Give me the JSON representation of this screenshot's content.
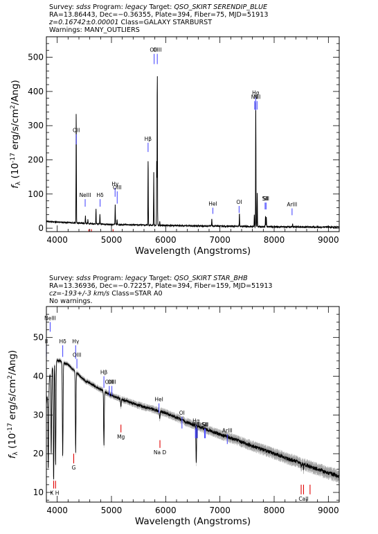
{
  "colors": {
    "emission": "#4b4bff",
    "absorption": "#e00000",
    "spectrum": "#000000",
    "error": "#9a9a9a"
  },
  "chart_data": [
    {
      "type": "line",
      "header": {
        "line1_prefix": "Survey:",
        "survey": "sdss",
        "program_label": "Program:",
        "program": "legacy",
        "target_label": "Target:",
        "target": "QSO_SKIRT SERENDIP_BLUE",
        "line2": "RA=13.86443, Dec=−0.36355, Plate=394, Fiber=75, MJD=51913",
        "redshift": "z=0.16742±0.00001",
        "class": "Class=GALAXY STARBURST",
        "warnings": "Warnings: MANY_OUTLIERS"
      },
      "xlabel": "Wavelength (Angstroms)",
      "ylabel": "f_λ (10^-17 erg/s/cm^2/Ang)",
      "xlim": [
        3800,
        9200
      ],
      "ylim": [
        -10,
        560
      ],
      "xticks": [
        4000,
        5000,
        6000,
        7000,
        8000,
        9000
      ],
      "yticks": [
        0,
        100,
        200,
        300,
        400,
        500
      ],
      "continuum": [
        [
          3800,
          20
        ],
        [
          4000,
          18
        ],
        [
          4500,
          14
        ],
        [
          5000,
          11
        ],
        [
          6000,
          8
        ],
        [
          7000,
          6
        ],
        [
          8000,
          4
        ],
        [
          9200,
          3
        ]
      ],
      "peaks": [
        [
          4350,
          350
        ],
        [
          4455,
          15
        ],
        [
          4520,
          38
        ],
        [
          4565,
          25
        ],
        [
          4715,
          55
        ],
        [
          4787,
          40
        ],
        [
          5069,
          70
        ],
        [
          5104,
          25
        ],
        [
          5676,
          205
        ],
        [
          5780,
          165
        ],
        [
          5834,
          195
        ],
        [
          5845,
          468
        ],
        [
          5890,
          20
        ],
        [
          6850,
          30
        ],
        [
          7360,
          45
        ],
        [
          7634,
          40
        ],
        [
          7661,
          368
        ],
        [
          7688,
          105
        ],
        [
          7840,
          35
        ],
        [
          7855,
          35
        ],
        [
          8340,
          12
        ]
      ],
      "emission_lines": [
        {
          "label": "OII",
          "x": 4351,
          "y0": 245,
          "y1": 275
        },
        {
          "label": "NeIII",
          "x": 4515,
          "y0": 63,
          "y1": 85
        },
        {
          "label": "Hδ",
          "x": 4790,
          "y0": 63,
          "y1": 85
        },
        {
          "label": "Hγ",
          "x": 5067,
          "y0": 92,
          "y1": 118
        },
        {
          "label": "OIII",
          "x": 5106,
          "y0": 72,
          "y1": 108
        },
        {
          "label": "Hβ",
          "x": 5675,
          "y0": 223,
          "y1": 250
        },
        {
          "label": "OIII",
          "x": 5787,
          "y0": 480,
          "y1": 510
        },
        {
          "label": "OIII",
          "x": 5845,
          "y0": 480,
          "y1": 510
        },
        {
          "label": "HeI",
          "x": 6870,
          "y0": 42,
          "y1": 60
        },
        {
          "label": "OI",
          "x": 7354,
          "y0": 45,
          "y1": 65
        },
        {
          "label": "NII",
          "x": 7640,
          "y0": 347,
          "y1": 372
        },
        {
          "label": "Hα",
          "x": 7660,
          "y0": 345,
          "y1": 385
        },
        {
          "label": "NII",
          "x": 7685,
          "y0": 347,
          "y1": 372
        },
        {
          "label": "SII",
          "x": 7833,
          "y0": 55,
          "y1": 75
        },
        {
          "label": "SII",
          "x": 7851,
          "y0": 55,
          "y1": 75
        },
        {
          "label": "ArIII",
          "x": 8330,
          "y0": 38,
          "y1": 58
        }
      ],
      "absorption_lines": [
        {
          "label": "",
          "x": 4582,
          "y0": -10,
          "y1": -3
        },
        {
          "label": "",
          "x": 4630,
          "y0": -10,
          "y1": -3
        },
        {
          "label": "",
          "x": 5030,
          "y0": -10,
          "y1": -3
        }
      ]
    },
    {
      "type": "line",
      "header": {
        "line1_prefix": "Survey:",
        "survey": "sdss",
        "program_label": "Program:",
        "program": "legacy",
        "target_label": "Target:",
        "target": "QSO_SKIRT STAR_BHB",
        "line2": "RA=13.36936, Dec=−0.72257, Plate=394, Fiber=159, MJD=51913",
        "redshift": "cz=-193+/-3 km/s",
        "class": "Class=STAR A0",
        "warnings": "No warnings."
      },
      "xlabel": "Wavelength (Angstroms)",
      "ylabel": "f_λ (10^-17 erg/s/cm^2/Ang)",
      "xlim": [
        3800,
        9200
      ],
      "ylim": [
        7.5,
        58
      ],
      "xticks": [
        4000,
        5000,
        6000,
        7000,
        8000,
        9000
      ],
      "yticks": [
        10,
        20,
        30,
        40,
        50
      ],
      "continuum": [
        [
          3800,
          33
        ],
        [
          3860,
          40
        ],
        [
          3950,
          44
        ],
        [
          4050,
          44
        ],
        [
          4200,
          43
        ],
        [
          4500,
          39
        ],
        [
          5000,
          35
        ],
        [
          5500,
          32.5
        ],
        [
          6000,
          30.5
        ],
        [
          6500,
          27.5
        ],
        [
          7000,
          25
        ],
        [
          7500,
          22.5
        ],
        [
          8000,
          20
        ],
        [
          8500,
          17.5
        ],
        [
          9000,
          15
        ],
        [
          9200,
          14.2
        ]
      ],
      "dips": [
        [
          3835,
          16
        ],
        [
          3889,
          20
        ],
        [
          3934,
          13
        ],
        [
          3970,
          17
        ],
        [
          4101,
          19
        ],
        [
          4340,
          20
        ],
        [
          4861,
          22
        ],
        [
          5175,
          32
        ],
        [
          5890,
          29
        ],
        [
          6563,
          17.5
        ],
        [
          7600,
          22
        ],
        [
          8498,
          16.5
        ],
        [
          8542,
          16
        ],
        [
          8662,
          16.5
        ]
      ],
      "emission_lines": [
        {
          "label": "II",
          "x": 3800,
          "y0": 45,
          "y1": 48
        },
        {
          "label": "NeIII",
          "x": 3870,
          "y0": 51.5,
          "y1": 54
        },
        {
          "label": "Hδ",
          "x": 4101,
          "y0": 45,
          "y1": 48
        },
        {
          "label": "Hγ",
          "x": 4340,
          "y0": 44.5,
          "y1": 48
        },
        {
          "label": "OIII",
          "x": 4363,
          "y0": 42,
          "y1": 44.5
        },
        {
          "label": "Hβ",
          "x": 4861,
          "y0": 37,
          "y1": 40
        },
        {
          "label": "OIII",
          "x": 4960,
          "y0": 35,
          "y1": 37.5
        },
        {
          "label": "OIII",
          "x": 5007,
          "y0": 35,
          "y1": 37.5
        },
        {
          "label": "HeI",
          "x": 5876,
          "y0": 30.5,
          "y1": 33
        },
        {
          "label": "OI",
          "x": 6300,
          "y0": 26.5,
          "y1": 29.5
        },
        {
          "label": "NII",
          "x": 6548,
          "y0": 24,
          "y1": 26.5
        },
        {
          "label": "Hα",
          "x": 6563,
          "y0": 24,
          "y1": 27.5
        },
        {
          "label": "NII",
          "x": 6584,
          "y0": 24,
          "y1": 26.5
        },
        {
          "label": "SII",
          "x": 6717,
          "y0": 24,
          "y1": 26.5
        },
        {
          "label": "SII",
          "x": 6731,
          "y0": 24,
          "y1": 26.5
        },
        {
          "label": "ArIII",
          "x": 7136,
          "y0": 22.5,
          "y1": 25
        }
      ],
      "absorption_lines": [
        {
          "label": "K H",
          "x": 3934,
          "x2": 3969,
          "y0": 11,
          "y1": 13
        },
        {
          "label": "G",
          "x": 4304,
          "y0": 17.5,
          "y1": 20
        },
        {
          "label": "Mg",
          "x": 5175,
          "y0": 25.5,
          "y1": 27.5
        },
        {
          "label": "Na D",
          "x": 5894,
          "y0": 21.5,
          "y1": 23.5
        },
        {
          "label": "CaII",
          "x": 8498,
          "x2": 8542,
          "x3": 8662,
          "y0": 9.5,
          "y1": 12
        }
      ]
    }
  ]
}
